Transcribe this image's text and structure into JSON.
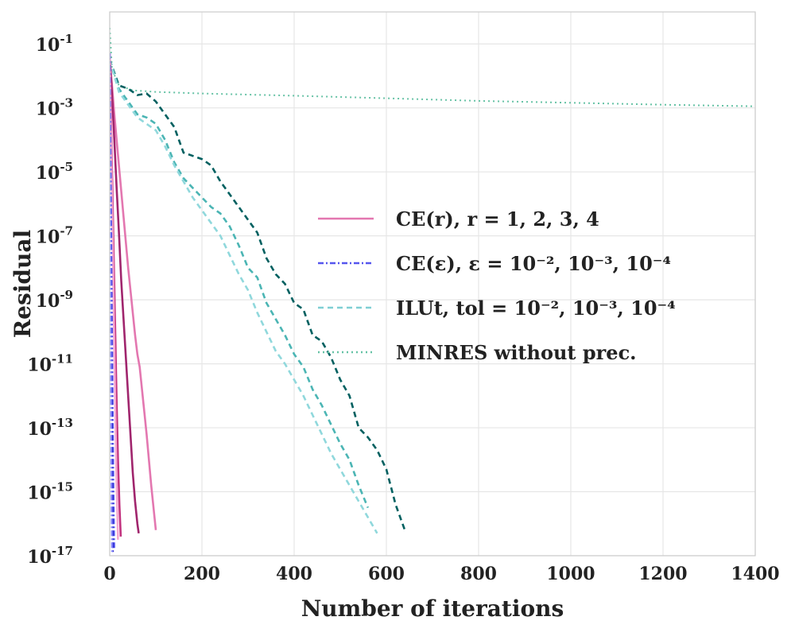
{
  "chart_data": {
    "type": "line",
    "title": "",
    "xlabel": "Number of iterations",
    "ylabel": "Residual",
    "xlim": [
      0,
      1400
    ],
    "ylim_log10": [
      -17,
      0
    ],
    "y_scale": "log",
    "grid": true,
    "legend_position": "center-right",
    "x_ticks": [
      0,
      200,
      400,
      600,
      800,
      1000,
      1200,
      1400
    ],
    "x_tick_labels": [
      "0",
      "200",
      "400",
      "600",
      "800",
      "1000",
      "1200",
      "1400"
    ],
    "y_ticks_log10": [
      -1,
      -3,
      -5,
      -7,
      -9,
      -11,
      -13,
      -15,
      -17
    ],
    "y_tick_labels": [
      {
        "base": "10",
        "exp": "-1"
      },
      {
        "base": "10",
        "exp": "-3"
      },
      {
        "base": "10",
        "exp": "-5"
      },
      {
        "base": "10",
        "exp": "-7"
      },
      {
        "base": "10",
        "exp": "-9"
      },
      {
        "base": "10",
        "exp": "-11"
      },
      {
        "base": "10",
        "exp": "-13"
      },
      {
        "base": "10",
        "exp": "-15"
      },
      {
        "base": "10",
        "exp": "-17"
      }
    ],
    "legend": [
      {
        "label": "CE(r), r = 1, 2, 3, 4",
        "color": "#e377b0",
        "dash": "solid"
      },
      {
        "label": "CE(ε), ε = 10⁻², 10⁻³, 10⁻⁴",
        "color": "#5555ee",
        "dash": "dashdot"
      },
      {
        "label": "ILUt, tol = 10⁻², 10⁻³, 10⁻⁴",
        "color": "#7fcfd4",
        "dash": "dashed"
      },
      {
        "label": "MINRES without prec.",
        "color": "#66c2a5",
        "dash": "dotted"
      }
    ],
    "series": [
      {
        "name": "MINRES without prec.",
        "color": "#66c2a5",
        "dash": "dotted",
        "width": 2,
        "x": [
          0,
          5,
          20,
          50,
          100,
          200,
          400,
          600,
          800,
          1000,
          1200,
          1400
        ],
        "log10y": [
          -0.5,
          -1.8,
          -2.3,
          -2.45,
          -2.5,
          -2.55,
          -2.62,
          -2.7,
          -2.78,
          -2.84,
          -2.9,
          -2.95
        ]
      },
      {
        "name": "ILUt tol=1e-4",
        "color": "#006060",
        "dash": "dashed",
        "width": 2.6,
        "x": [
          0,
          20,
          40,
          60,
          80,
          100,
          120,
          140,
          160,
          200,
          220,
          240,
          260,
          280,
          300,
          320,
          340,
          360,
          380,
          400,
          420,
          440,
          460,
          480,
          500,
          520,
          540,
          560,
          580,
          600,
          620,
          640
        ],
        "log10y": [
          -1.5,
          -2.3,
          -2.4,
          -2.6,
          -2.55,
          -2.8,
          -3.2,
          -3.6,
          -4.4,
          -4.6,
          -4.8,
          -5.3,
          -5.7,
          -6.1,
          -6.5,
          -6.9,
          -7.7,
          -8.2,
          -8.5,
          -9.1,
          -9.3,
          -10.1,
          -10.3,
          -10.8,
          -11.5,
          -12.0,
          -13.0,
          -13.3,
          -13.7,
          -14.3,
          -15.4,
          -16.2
        ]
      },
      {
        "name": "ILUt tol=1e-3",
        "color": "#4bb5b4",
        "dash": "dashed",
        "width": 2.6,
        "x": [
          0,
          20,
          40,
          60,
          80,
          100,
          120,
          140,
          160,
          180,
          200,
          220,
          240,
          260,
          280,
          300,
          320,
          340,
          360,
          380,
          400,
          420,
          440,
          460,
          480,
          500,
          520,
          540,
          560
        ],
        "log10y": [
          -1.5,
          -2.4,
          -2.8,
          -3.2,
          -3.3,
          -3.5,
          -4.0,
          -4.7,
          -5.2,
          -5.5,
          -5.8,
          -6.1,
          -6.3,
          -6.7,
          -7.3,
          -8.0,
          -8.3,
          -9.1,
          -9.6,
          -10.1,
          -10.7,
          -11.1,
          -11.8,
          -12.3,
          -12.9,
          -13.5,
          -14.0,
          -14.8,
          -15.5
        ]
      },
      {
        "name": "ILUt tol=1e-2",
        "color": "#90d8dc",
        "dash": "dashed",
        "width": 2.6,
        "x": [
          0,
          20,
          40,
          60,
          80,
          100,
          120,
          140,
          160,
          180,
          200,
          220,
          240,
          260,
          280,
          300,
          320,
          340,
          360,
          380,
          400,
          420,
          440,
          460,
          480,
          500,
          520,
          540,
          560,
          580
        ],
        "log10y": [
          -1.5,
          -2.5,
          -2.9,
          -3.3,
          -3.5,
          -3.7,
          -4.2,
          -4.8,
          -5.3,
          -5.8,
          -6.2,
          -6.6,
          -7.0,
          -7.6,
          -8.2,
          -8.7,
          -9.4,
          -10.0,
          -10.6,
          -11.0,
          -11.5,
          -12.0,
          -12.6,
          -13.2,
          -13.8,
          -14.3,
          -14.8,
          -15.3,
          -15.8,
          -16.3
        ]
      },
      {
        "name": "CE(r) r=1",
        "color": "#e377b0",
        "dash": "solid",
        "width": 2.6,
        "x": [
          0,
          5,
          10,
          15,
          20,
          25,
          30,
          35,
          40,
          45,
          50,
          55,
          60,
          65,
          70,
          75,
          80,
          85,
          90,
          95,
          100
        ],
        "log10y": [
          -1.5,
          -2.3,
          -3.2,
          -4.0,
          -4.8,
          -5.6,
          -6.4,
          -7.2,
          -8.0,
          -8.7,
          -9.4,
          -10.1,
          -10.7,
          -11.1,
          -11.8,
          -12.5,
          -13.2,
          -14.0,
          -14.8,
          -15.5,
          -16.2
        ]
      },
      {
        "name": "CE(r) r=2",
        "color": "#a0256d",
        "dash": "solid",
        "width": 2.6,
        "x": [
          0,
          5,
          10,
          15,
          20,
          25,
          30,
          35,
          40,
          45,
          50,
          55,
          60,
          63
        ],
        "log10y": [
          -1.4,
          -2.6,
          -4.0,
          -5.5,
          -6.9,
          -8.4,
          -9.6,
          -10.8,
          -12.0,
          -13.2,
          -14.4,
          -15.3,
          -16.0,
          -16.3
        ]
      },
      {
        "name": "CE(r) r=3",
        "color": "#c2337f",
        "dash": "solid",
        "width": 2.6,
        "x": [
          0,
          3,
          6,
          9,
          12,
          15,
          18,
          21,
          24
        ],
        "log10y": [
          -1.3,
          -3.5,
          -5.7,
          -7.9,
          -10.1,
          -12.2,
          -14.0,
          -15.4,
          -16.4
        ]
      },
      {
        "name": "CE(r) r=4",
        "color": "#f7a8d0",
        "dash": "solid",
        "width": 2.6,
        "x": [
          0,
          3,
          6,
          9,
          12,
          15,
          18
        ],
        "log10y": [
          -1.3,
          -4.0,
          -6.8,
          -9.6,
          -12.4,
          -14.8,
          -16.5
        ]
      },
      {
        "name": "CE(eps) 1e-2",
        "color": "#5555ee",
        "dash": "dashdot",
        "width": 2.2,
        "x": [
          0,
          2,
          4,
          6,
          8,
          10
        ],
        "log10y": [
          -1.3,
          -4.5,
          -8.0,
          -11.5,
          -14.6,
          -16.8
        ]
      },
      {
        "name": "CE(eps) 1e-3",
        "color": "#2a2acc",
        "dash": "dashdot",
        "width": 2.2,
        "x": [
          0,
          1.5,
          3,
          4.5,
          6,
          7
        ],
        "log10y": [
          -1.3,
          -4.8,
          -8.5,
          -12.2,
          -15.4,
          -16.9
        ]
      },
      {
        "name": "CE(eps) 1e-4",
        "color": "#8888ff",
        "dash": "dashdot",
        "width": 2.2,
        "x": [
          0,
          1,
          2,
          3,
          4,
          5
        ],
        "log10y": [
          -1.3,
          -4.9,
          -8.6,
          -12.3,
          -15.5,
          -16.9
        ]
      }
    ]
  }
}
